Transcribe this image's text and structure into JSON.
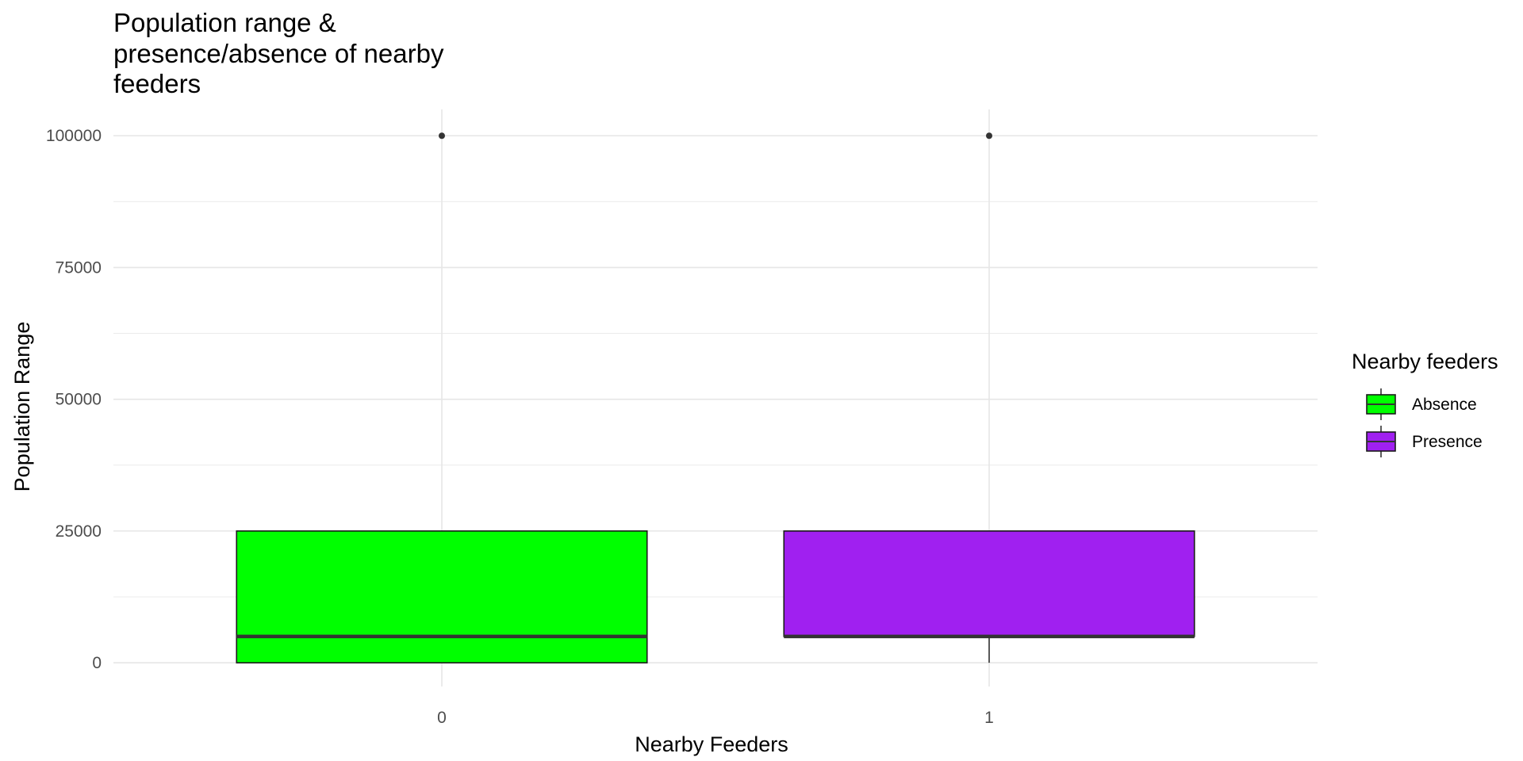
{
  "chart_data": {
    "type": "box",
    "title": "Population range & presence/absence of nearby feeders",
    "title_lines": [
      "Population range &",
      "presence/absence of nearby",
      "feeders"
    ],
    "xlabel": "Nearby Feeders",
    "ylabel": "Population Range",
    "categories": [
      "0",
      "1"
    ],
    "ylim": [
      -4500,
      105000
    ],
    "y_ticks": [
      0,
      25000,
      50000,
      75000,
      100000
    ],
    "y_tick_labels": [
      "0",
      "25000",
      "50000",
      "75000",
      "100000"
    ],
    "grid": true,
    "legend_position": "right",
    "legend_title": "Nearby feeders",
    "series": [
      {
        "name": "Absence",
        "category": "0",
        "color": "#00ff00",
        "whisker_low": 0,
        "q1": 0,
        "median": 5000,
        "q3": 25000,
        "whisker_high": 25000,
        "outliers": [
          100000
        ]
      },
      {
        "name": "Presence",
        "category": "1",
        "color": "#a020f0",
        "whisker_low": 0,
        "q1": 5000,
        "median": 5000,
        "q3": 25000,
        "whisker_high": 25000,
        "outliers": [
          100000
        ]
      }
    ]
  }
}
